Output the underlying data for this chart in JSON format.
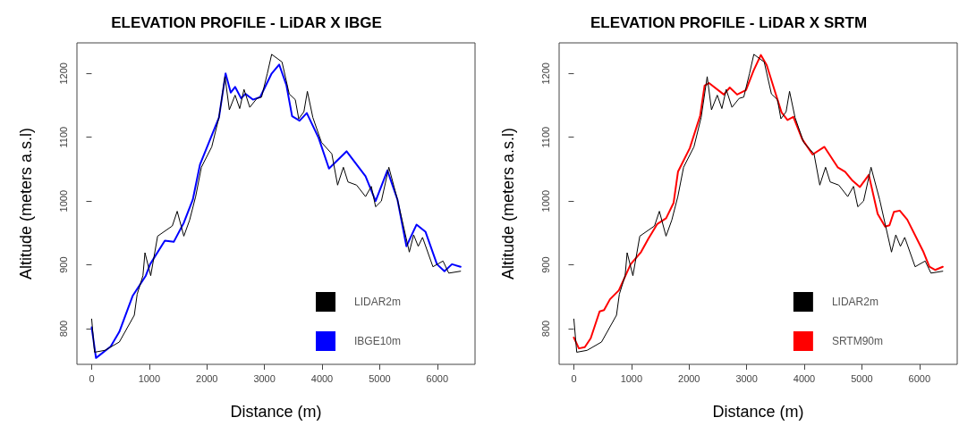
{
  "chart_data": [
    {
      "type": "line",
      "title": "ELEVATION PROFILE - LiDAR X IBGE",
      "xlabel": "Distance (m)",
      "ylabel": "Altitude (meters a.s.l)",
      "xlim": [
        -256,
        6656
      ],
      "ylim": [
        744,
        1248
      ],
      "xticks": [
        0,
        1000,
        2000,
        3000,
        4000,
        5000,
        6000
      ],
      "yticks": [
        800,
        900,
        1000,
        1100,
        1200
      ],
      "grid": false,
      "legend": "bottom right",
      "marker": "none",
      "line_style": "solid",
      "series": [
        {
          "name": "LIDAR2m",
          "color": "#000000",
          "x": [
            0,
            50,
            230,
            480,
            740,
            790,
            890,
            925,
            1025,
            1145,
            1400,
            1485,
            1600,
            1700,
            1805,
            1905,
            2085,
            2210,
            2315,
            2390,
            2490,
            2570,
            2645,
            2745,
            2870,
            2950,
            3050,
            3125,
            3305,
            3430,
            3535,
            3595,
            3685,
            3745,
            3840,
            3990,
            4170,
            4270,
            4370,
            4450,
            4600,
            4755,
            4855,
            4930,
            5030,
            5160,
            5310,
            5515,
            5590,
            5670,
            5745,
            5925,
            6100,
            6200,
            6405
          ],
          "values": [
            815,
            763,
            766,
            779,
            821,
            854,
            883,
            919,
            883,
            945,
            961,
            984,
            945,
            970,
            1007,
            1053,
            1085,
            1131,
            1195,
            1143,
            1166,
            1145,
            1175,
            1147,
            1161,
            1163,
            1200,
            1230,
            1218,
            1168,
            1159,
            1129,
            1140,
            1172,
            1131,
            1092,
            1074,
            1025,
            1053,
            1030,
            1025,
            1007,
            1023,
            991,
            1000,
            1053,
            1002,
            920,
            947,
            929,
            943,
            897,
            906,
            887,
            890
          ]
        },
        {
          "name": "IBGE10m",
          "color": "#0000ff",
          "x": [
            0,
            75,
            330,
            480,
            710,
            940,
            1015,
            1270,
            1425,
            1600,
            1755,
            1880,
            2210,
            2325,
            2415,
            2490,
            2595,
            2670,
            2800,
            2925,
            3125,
            3255,
            3380,
            3480,
            3610,
            3735,
            3940,
            4120,
            4425,
            4755,
            4930,
            5135,
            5310,
            5465,
            5640,
            5795,
            5995,
            6125,
            6255,
            6405
          ],
          "values": [
            802,
            754,
            772,
            795,
            851,
            883,
            901,
            938,
            936,
            966,
            1002,
            1057,
            1131,
            1200,
            1170,
            1179,
            1161,
            1168,
            1159,
            1163,
            1200,
            1214,
            1182,
            1133,
            1126,
            1138,
            1099,
            1051,
            1078,
            1039,
            1000,
            1048,
            1002,
            929,
            963,
            952,
            901,
            890,
            901,
            897
          ]
        }
      ]
    },
    {
      "type": "line",
      "title": "ELEVATION PROFILE - LiDAR X SRTM",
      "xlabel": "Distance (m)",
      "ylabel": "Altitude (meters a.s.l)",
      "xlim": [
        -256,
        6656
      ],
      "ylim": [
        744,
        1248
      ],
      "xticks": [
        0,
        1000,
        2000,
        3000,
        4000,
        5000,
        6000
      ],
      "yticks": [
        800,
        900,
        1000,
        1100,
        1200
      ],
      "grid": false,
      "legend": "bottom right",
      "marker": "none",
      "line_style": "solid",
      "series": [
        {
          "name": "LIDAR2m",
          "color": "#000000",
          "x": [
            0,
            50,
            230,
            480,
            740,
            790,
            890,
            925,
            1025,
            1145,
            1400,
            1485,
            1600,
            1700,
            1805,
            1905,
            2085,
            2210,
            2315,
            2390,
            2490,
            2570,
            2645,
            2745,
            2870,
            2950,
            3050,
            3125,
            3305,
            3430,
            3535,
            3595,
            3685,
            3745,
            3840,
            3990,
            4170,
            4270,
            4370,
            4450,
            4600,
            4755,
            4855,
            4930,
            5030,
            5160,
            5310,
            5515,
            5590,
            5670,
            5745,
            5925,
            6100,
            6200,
            6405
          ],
          "values": [
            815,
            763,
            766,
            779,
            821,
            854,
            883,
            919,
            883,
            945,
            961,
            984,
            945,
            970,
            1007,
            1053,
            1085,
            1131,
            1195,
            1143,
            1166,
            1145,
            1175,
            1147,
            1161,
            1163,
            1200,
            1230,
            1218,
            1168,
            1159,
            1129,
            1140,
            1172,
            1131,
            1092,
            1074,
            1025,
            1053,
            1030,
            1025,
            1007,
            1023,
            991,
            1000,
            1053,
            1002,
            920,
            947,
            929,
            943,
            897,
            906,
            887,
            890
          ]
        },
        {
          "name": "SRTM90m",
          "color": "#ff0000",
          "x": [
            0,
            87,
            190,
            293,
            447,
            524,
            627,
            781,
            986,
            1166,
            1294,
            1448,
            1602,
            1731,
            1808,
            2013,
            2193,
            2270,
            2347,
            2604,
            2707,
            2835,
            2989,
            3118,
            3246,
            3349,
            3477,
            3606,
            3709,
            3811,
            3965,
            4145,
            4350,
            4581,
            4710,
            4838,
            4967,
            5121,
            5275,
            5404,
            5480,
            5557,
            5659,
            5788,
            6071,
            6173,
            6276,
            6405
          ],
          "values": [
            786,
            769,
            771,
            785,
            827,
            829,
            846,
            860,
            901,
            920,
            941,
            964,
            973,
            997,
            1046,
            1083,
            1134,
            1181,
            1185,
            1167,
            1178,
            1167,
            1174,
            1204,
            1229,
            1213,
            1176,
            1139,
            1127,
            1132,
            1097,
            1073,
            1085,
            1053,
            1046,
            1032,
            1022,
            1041,
            980,
            960,
            962,
            983,
            985,
            971,
            920,
            897,
            892,
            897
          ]
        }
      ]
    }
  ]
}
